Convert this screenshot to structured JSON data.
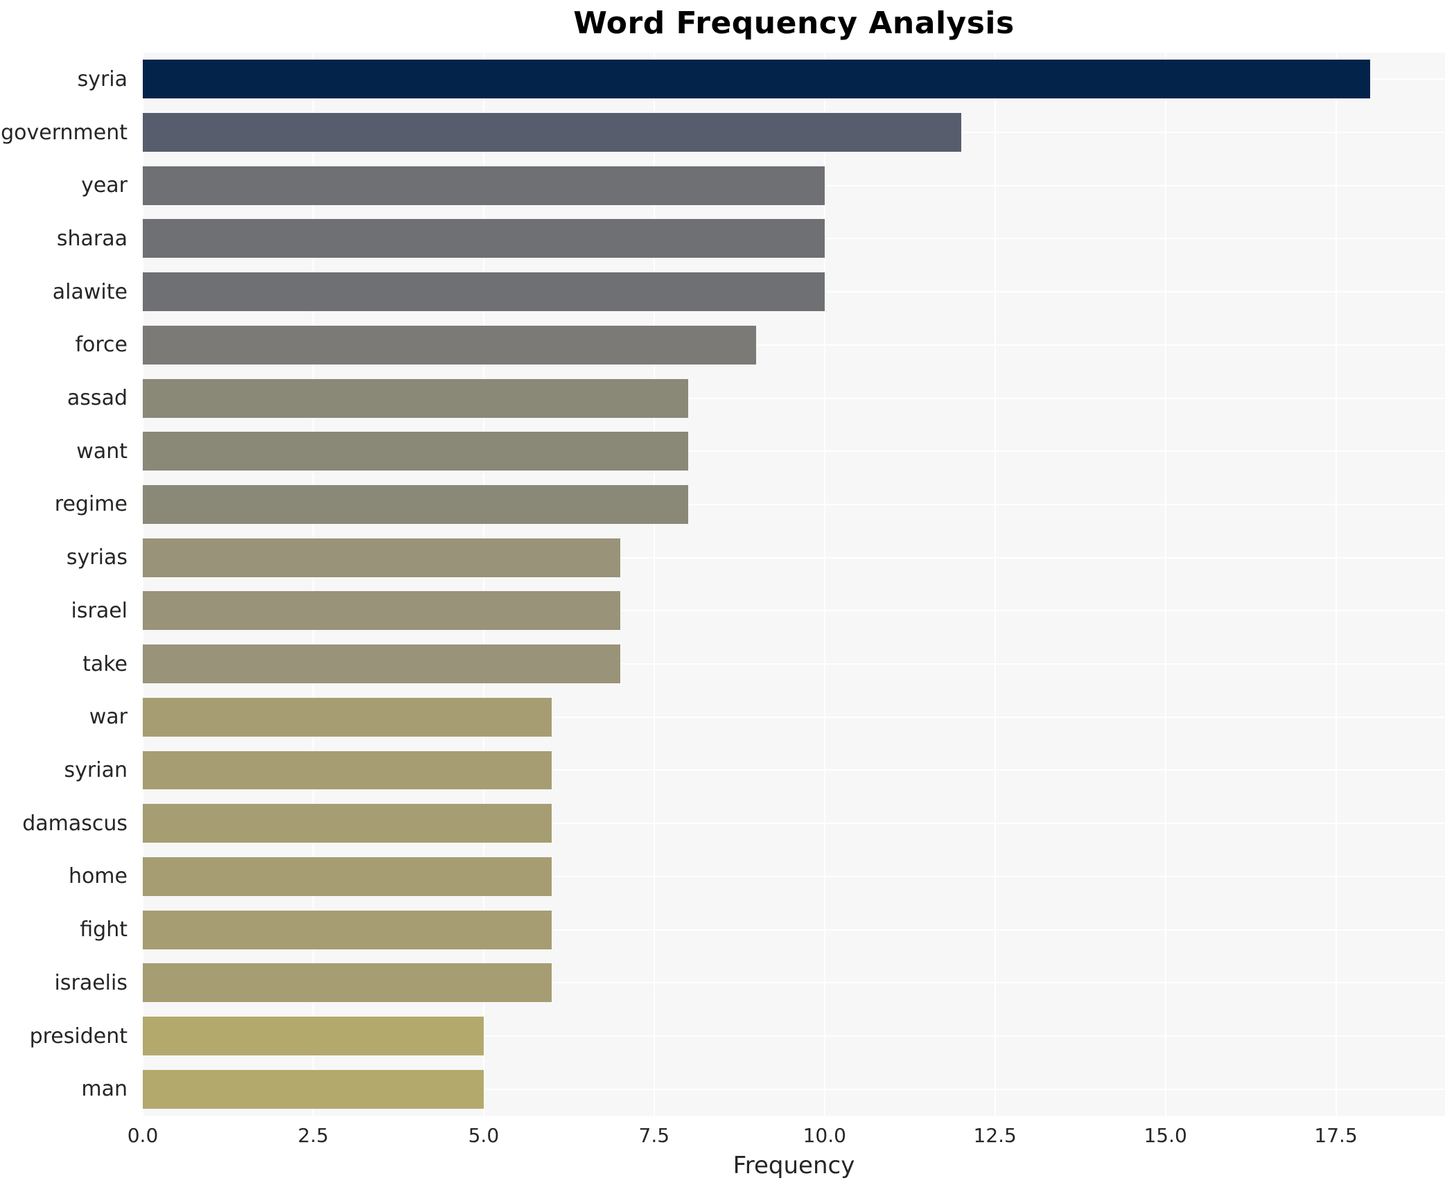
{
  "chart_data": {
    "type": "bar",
    "orientation": "horizontal",
    "title": "Word Frequency Analysis",
    "xlabel": "Frequency",
    "ylabel": "",
    "categories": [
      "syria",
      "government",
      "year",
      "sharaa",
      "alawite",
      "force",
      "assad",
      "want",
      "regime",
      "syrias",
      "israel",
      "take",
      "war",
      "syrian",
      "damascus",
      "home",
      "fight",
      "israelis",
      "president",
      "man"
    ],
    "values": [
      18,
      12,
      10,
      10,
      10,
      9,
      8,
      8,
      8,
      7,
      7,
      7,
      6,
      6,
      6,
      6,
      6,
      6,
      5,
      5
    ],
    "bar_colors": [
      "#03234b",
      "#575d6c",
      "#6f7073",
      "#6f7073",
      "#6f7073",
      "#7b7a76",
      "#8a8877",
      "#8a8877",
      "#8a8877",
      "#989379",
      "#989379",
      "#989379",
      "#a69d72",
      "#a69d72",
      "#a69d72",
      "#a69d72",
      "#a69d72",
      "#a69d72",
      "#b3a96d",
      "#b3a96d"
    ],
    "xtick_labels": [
      "0.0",
      "2.5",
      "5.0",
      "7.5",
      "10.0",
      "12.5",
      "15.0",
      "17.5"
    ],
    "xtick_values": [
      0,
      2.5,
      5,
      7.5,
      10,
      12.5,
      15,
      17.5
    ],
    "xlim": [
      0,
      19.1
    ],
    "grid": true,
    "legend": false,
    "plot_background": "#f7f7f8",
    "gridline_color": "#ffffff",
    "figure_background": "#ffffff",
    "colormap": "cividis"
  }
}
